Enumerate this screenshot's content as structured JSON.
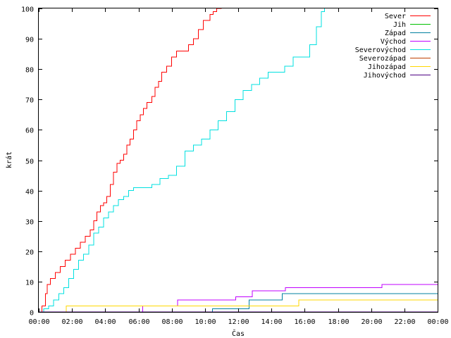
{
  "chart_data": {
    "type": "line",
    "xlabel": "Čas",
    "ylabel": "krát",
    "xlim": [
      0,
      24
    ],
    "ylim": [
      0,
      100
    ],
    "grid": false,
    "legend_position": "top-right",
    "x_ticks": [
      {
        "value": 0,
        "label": "00:00"
      },
      {
        "value": 2,
        "label": "02:00"
      },
      {
        "value": 4,
        "label": "04:00"
      },
      {
        "value": 6,
        "label": "06:00"
      },
      {
        "value": 8,
        "label": "08:00"
      },
      {
        "value": 10,
        "label": "10:00"
      },
      {
        "value": 12,
        "label": "12:00"
      },
      {
        "value": 14,
        "label": "14:00"
      },
      {
        "value": 16,
        "label": "16:00"
      },
      {
        "value": 18,
        "label": "18:00"
      },
      {
        "value": 20,
        "label": "20:00"
      },
      {
        "value": 22,
        "label": "22:00"
      },
      {
        "value": 24,
        "label": "00:00"
      }
    ],
    "y_ticks": [
      {
        "value": 0,
        "label": "0"
      },
      {
        "value": 10,
        "label": "10"
      },
      {
        "value": 20,
        "label": "20"
      },
      {
        "value": 30,
        "label": "30"
      },
      {
        "value": 40,
        "label": "40"
      },
      {
        "value": 50,
        "label": "50"
      },
      {
        "value": 60,
        "label": "60"
      },
      {
        "value": 70,
        "label": "70"
      },
      {
        "value": 80,
        "label": "80"
      },
      {
        "value": 90,
        "label": "90"
      },
      {
        "value": 100,
        "label": "100"
      }
    ],
    "series": [
      {
        "name": "Sever",
        "color": "#ff0000",
        "x": [
          0.0,
          0.2,
          0.4,
          0.5,
          0.7,
          1.0,
          1.3,
          1.6,
          1.9,
          2.2,
          2.5,
          2.8,
          3.1,
          3.3,
          3.5,
          3.7,
          3.9,
          4.1,
          4.3,
          4.5,
          4.7,
          4.9,
          5.1,
          5.3,
          5.5,
          5.7,
          5.9,
          6.1,
          6.3,
          6.5,
          6.8,
          7.0,
          7.2,
          7.4,
          7.7,
          8.0,
          8.3,
          8.7,
          9.0,
          9.3,
          9.6,
          9.9,
          10.3,
          10.5,
          10.7,
          11.0
        ],
        "y": [
          0,
          2,
          6,
          9,
          11,
          13,
          15,
          17,
          19,
          21,
          23,
          25,
          27,
          30,
          33,
          35,
          36,
          38,
          42,
          46,
          49,
          50,
          52,
          55,
          57,
          60,
          63,
          65,
          67,
          69,
          71,
          74,
          76,
          79,
          81,
          84,
          86,
          86,
          88,
          90,
          93,
          96,
          98,
          99,
          100,
          100
        ]
      },
      {
        "name": "Jih",
        "color": "#00c000",
        "x": [
          0,
          24
        ],
        "y": [
          0,
          0
        ]
      },
      {
        "name": "Západ",
        "color": "#0080a0",
        "x": [
          0.0,
          10.4,
          10.45,
          12.6,
          12.65,
          14.6,
          14.65,
          24.0
        ],
        "y": [
          0,
          0,
          1,
          1,
          4,
          4,
          6,
          6
        ]
      },
      {
        "name": "Východ",
        "color": "#c000ff",
        "x": [
          0.0,
          6.2,
          6.25,
          8.3,
          8.35,
          11.8,
          11.85,
          12.8,
          12.85,
          14.8,
          14.85,
          20.6,
          20.65,
          24.0
        ],
        "y": [
          0,
          0,
          2,
          2,
          4,
          4,
          5,
          5,
          7,
          7,
          8,
          8,
          9,
          9
        ]
      },
      {
        "name": "Severovýchod",
        "color": "#00e0e0",
        "x": [
          0.0,
          0.3,
          0.6,
          0.9,
          1.2,
          1.5,
          1.8,
          2.1,
          2.4,
          2.7,
          3.0,
          3.3,
          3.6,
          3.9,
          4.2,
          4.5,
          4.8,
          5.1,
          5.4,
          5.7,
          6.0,
          6.3,
          6.8,
          7.3,
          7.8,
          8.3,
          8.8,
          9.3,
          9.8,
          10.3,
          10.8,
          11.3,
          11.8,
          12.3,
          12.8,
          13.3,
          13.8,
          14.3,
          14.8,
          15.3,
          15.8,
          16.3,
          16.7,
          17.0,
          17.2
        ],
        "y": [
          0,
          1,
          2,
          4,
          6,
          8,
          11,
          14,
          17,
          19,
          22,
          26,
          28,
          31,
          33,
          35,
          37,
          38,
          40,
          41,
          41,
          41,
          42,
          44,
          45,
          48,
          53,
          55,
          57,
          60,
          63,
          66,
          70,
          73,
          75,
          77,
          79,
          79,
          81,
          84,
          84,
          88,
          94,
          99,
          100
        ]
      },
      {
        "name": "Severozápad",
        "color": "#c04000",
        "x": [
          0,
          24
        ],
        "y": [
          0,
          0
        ]
      },
      {
        "name": "Jihozápad",
        "color": "#ffd700",
        "x": [
          0.0,
          1.6,
          1.65,
          15.6,
          15.65,
          24.0
        ],
        "y": [
          0,
          0,
          2,
          2,
          4,
          4
        ]
      },
      {
        "name": "Jihovýchod",
        "color": "#4b0082",
        "x": [
          0,
          24
        ],
        "y": [
          0,
          0
        ]
      }
    ]
  }
}
